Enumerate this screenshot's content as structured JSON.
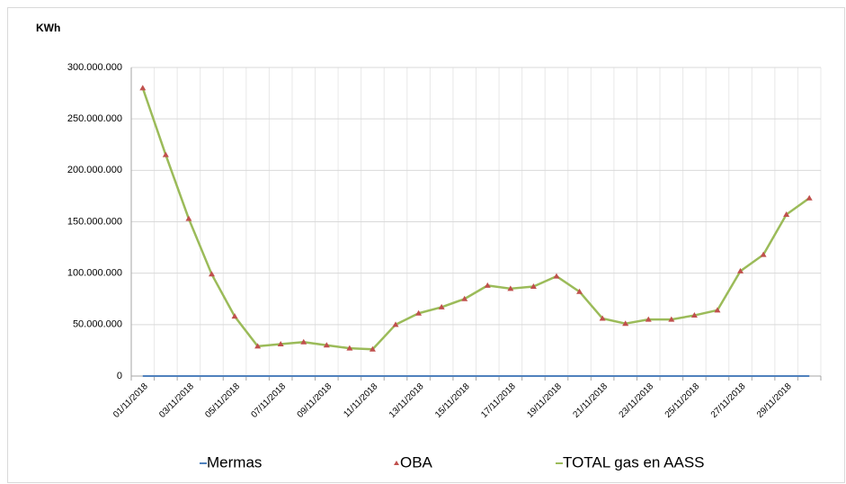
{
  "chart_data": {
    "type": "line",
    "ylabel": "KWh",
    "categories": [
      "01/11/2018",
      null,
      "03/11/2018",
      null,
      "05/11/2018",
      null,
      "07/11/2018",
      null,
      "09/11/2018",
      null,
      "11/11/2018",
      null,
      "13/11/2018",
      null,
      "15/11/2018",
      null,
      "17/11/2018",
      null,
      "19/11/2018",
      null,
      "21/11/2018",
      null,
      "23/11/2018",
      null,
      "25/11/2018",
      null,
      "27/11/2018",
      null,
      "29/11/2018",
      null
    ],
    "series": [
      {
        "name": "Mermas",
        "color": "#4f81bd",
        "values": [
          0,
          0,
          0,
          0,
          0,
          0,
          0,
          0,
          0,
          0,
          0,
          0,
          0,
          0,
          0,
          0,
          0,
          0,
          0,
          0,
          0,
          0,
          0,
          0,
          0,
          0,
          0,
          0,
          0,
          0
        ]
      },
      {
        "name": "OBA",
        "color": "#c0504d",
        "marker": "triangle",
        "values": [
          280000000,
          215000000,
          153000000,
          99000000,
          58000000,
          29000000,
          31000000,
          33000000,
          30000000,
          27000000,
          26000000,
          50000000,
          61000000,
          67000000,
          75000000,
          88000000,
          85000000,
          87000000,
          97000000,
          82000000,
          56000000,
          51000000,
          55000000,
          55000000,
          59000000,
          64000000,
          102000000,
          118000000,
          157000000,
          173000000
        ]
      },
      {
        "name": "TOTAL gas en AASS",
        "color": "#9bbb59",
        "values": [
          280000000,
          215000000,
          153000000,
          99000000,
          58000000,
          29000000,
          31000000,
          33000000,
          30000000,
          27000000,
          26000000,
          50000000,
          61000000,
          67000000,
          75000000,
          88000000,
          85000000,
          87000000,
          97000000,
          82000000,
          56000000,
          51000000,
          55000000,
          55000000,
          59000000,
          64000000,
          102000000,
          118000000,
          157000000,
          173000000
        ]
      }
    ],
    "ylim": [
      0,
      300000000
    ],
    "yticks": [
      0,
      {
        "value": 50000000,
        "label": "50.000.000"
      },
      {
        "value": 100000000,
        "label": "100.000.000"
      },
      {
        "value": 150000000,
        "label": "150.000.000"
      },
      {
        "value": 200000000,
        "label": "200.000.000"
      },
      {
        "value": 250000000,
        "label": "250.000.000"
      },
      {
        "value": 300000000,
        "label": "300.000.000"
      }
    ],
    "grid": true,
    "legend": "bottom"
  }
}
